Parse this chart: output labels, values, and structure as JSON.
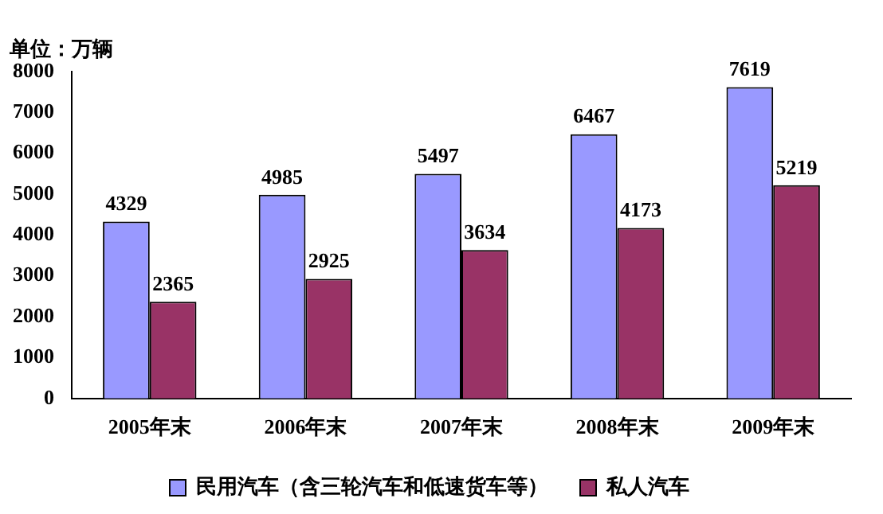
{
  "chart_data": {
    "type": "bar",
    "ylabel": "单位：万辆",
    "categories": [
      "2005年末",
      "2006年末",
      "2007年末",
      "2008年末",
      "2009年末"
    ],
    "series": [
      {
        "name": "民用汽车（含三轮汽车和低速货车等）",
        "color": "#9999ff",
        "values": [
          4329,
          4985,
          5497,
          6467,
          7619
        ]
      },
      {
        "name": "私人汽车",
        "color": "#993366",
        "values": [
          2365,
          2925,
          3634,
          4173,
          5219
        ]
      }
    ],
    "ylim": [
      0,
      8000
    ],
    "yticks": [
      0,
      1000,
      2000,
      3000,
      4000,
      5000,
      6000,
      7000,
      8000
    ],
    "grid": false,
    "legend": "bottom",
    "data_labels": true
  }
}
